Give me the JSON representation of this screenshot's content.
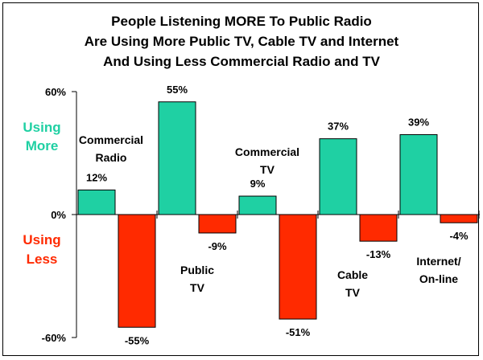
{
  "chart_data": {
    "type": "bar",
    "title": [
      "People Listening MORE To Public Radio",
      "Are Using More Public TV, Cable TV and Internet",
      "And Using Less Commercial Radio and TV"
    ],
    "categories": [
      [
        "Commercial",
        "Radio"
      ],
      [
        "Public",
        "TV"
      ],
      [
        "Commercial",
        "TV"
      ],
      [
        "Cable",
        "TV"
      ],
      [
        "Internet/",
        "On-line"
      ]
    ],
    "series": [
      {
        "name": "Using More",
        "color": "#1fd0a3",
        "values": [
          12,
          55,
          9,
          37,
          39
        ]
      },
      {
        "name": "Using Less",
        "color": "#ff2a00",
        "values": [
          -55,
          -9,
          -51,
          -13,
          -4
        ]
      }
    ],
    "data_labels": {
      "more": [
        "12%",
        "55%",
        "9%",
        "37%",
        "39%"
      ],
      "less": [
        "-55%",
        "-9%",
        "-51%",
        "-13%",
        "-4%"
      ]
    },
    "ylim": [
      -60,
      60
    ],
    "yticks": [
      {
        "value": 60,
        "label": "60%"
      },
      {
        "value": 0,
        "label": "0%"
      },
      {
        "value": -60,
        "label": "-60%"
      }
    ],
    "legend_more": [
      "Using",
      "More"
    ],
    "legend_less": [
      "Using",
      "Less"
    ]
  }
}
